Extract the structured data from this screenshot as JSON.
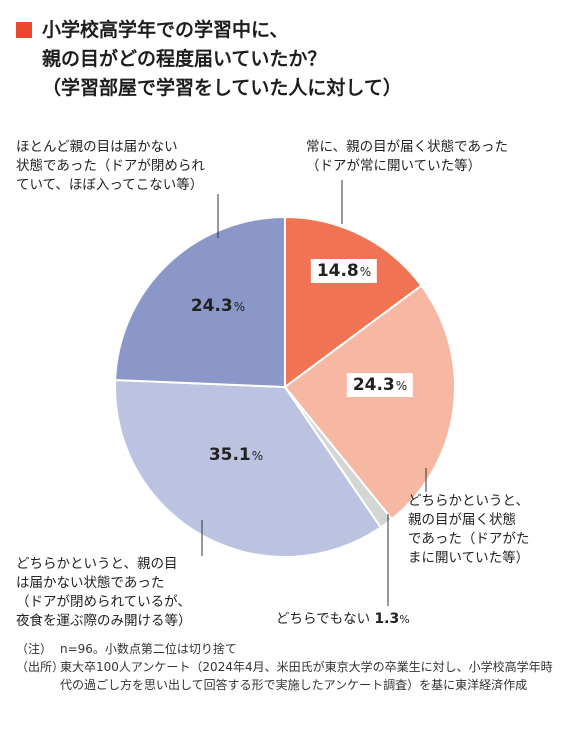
{
  "title": {
    "lines": [
      "小学校高学年での学習中に、",
      "親の目がどの程度届いていたか？",
      "（学習部屋で学習をしていた人に対して）"
    ]
  },
  "chart_data": {
    "type": "pie",
    "unit": "%",
    "slices": [
      {
        "value": 14.8,
        "value_label": "14.8",
        "label_lines": [
          "常に、親の目が届く状態であった",
          "（ドアが常に開いていた等）"
        ],
        "color": "#f07453"
      },
      {
        "value": 24.3,
        "value_label": "24.3",
        "label_lines": [
          "どちらかというと、",
          "親の目が届く状態",
          "であった（ドアがた",
          "まに開いていた等）"
        ],
        "color": "#f6b8a2"
      },
      {
        "value": 1.3,
        "value_label": "1.3",
        "label_lines": [
          "どちらでもない"
        ],
        "color": "#d4d6d6"
      },
      {
        "value": 35.1,
        "value_label": "35.1",
        "label_lines": [
          "どちらかというと、親の目",
          "は届かない状態であった",
          "（ドアが閉められているが、",
          "夜食を運ぶ際のみ開ける等）"
        ],
        "color": "#bcc3e0"
      },
      {
        "value": 24.3,
        "value_label": "24.3",
        "label_lines": [
          "ほとんど親の目は届かない",
          "状態であった（ドアが閉められ",
          "ていて、ほぼ入ってこない等）"
        ],
        "color": "#8a97c8"
      }
    ]
  },
  "notes": [
    {
      "head": "（注）",
      "body": "n=96。小数点第二位は切り捨て"
    },
    {
      "head": "（出所）",
      "body": "東大卒100人アンケート（2024年4月、米田氏が東京大学の卒業生に対し、小学校高学年時代の過ごし方を思い出して回答する形で実施したアンケート調査）を基に東洋経済作成"
    }
  ]
}
